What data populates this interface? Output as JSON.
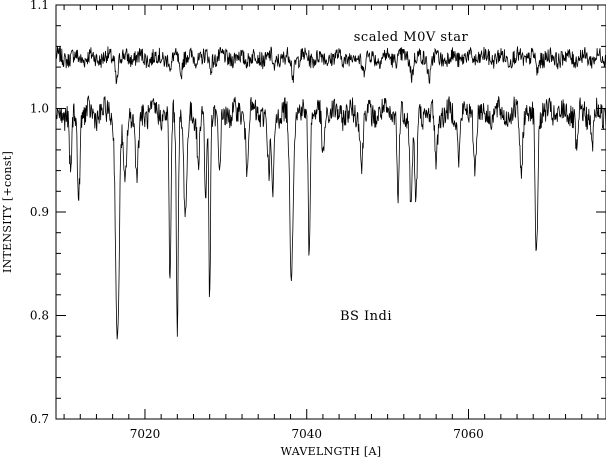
{
  "chart_data": {
    "type": "line",
    "title": "",
    "xlabel": "WAVELNGTH [A]",
    "ylabel": "INTENSITY [+const]",
    "xlim": [
      7009,
      7077
    ],
    "ylim": [
      0.7,
      1.1
    ],
    "xticks": [
      7020,
      7040,
      7060
    ],
    "yticks": [
      0.7,
      0.8,
      0.9,
      1.0,
      1.1
    ],
    "ytick_labels": [
      "0.7",
      "0.8",
      "0.9",
      "1.0",
      "1.1"
    ],
    "grid": false,
    "annotations": [
      {
        "text": "scaled M0V star",
        "x": 7059,
        "y": 1.078
      },
      {
        "text": "BS Indi",
        "x": 7054,
        "y": 0.797
      }
    ],
    "series": [
      {
        "continuum": 1.049,
        "noise_amplitude": 0.008,
        "lines": [
          {
            "center": 7016.5,
            "depth": 0.022,
            "width": 0.15
          },
          {
            "center": 7023.2,
            "depth": 0.015,
            "width": 0.12
          },
          {
            "center": 7024.4,
            "depth": 0.02,
            "width": 0.12
          },
          {
            "center": 7028.1,
            "depth": 0.012,
            "width": 0.12
          },
          {
            "center": 7036.0,
            "depth": 0.012,
            "width": 0.15
          },
          {
            "center": 7038.3,
            "depth": 0.018,
            "width": 0.15
          },
          {
            "center": 7047.0,
            "depth": 0.012,
            "width": 0.15
          },
          {
            "center": 7053.0,
            "depth": 0.015,
            "width": 0.15
          },
          {
            "center": 7055.2,
            "depth": 0.018,
            "width": 0.2
          },
          {
            "center": 7068.5,
            "depth": 0.015,
            "width": 0.15
          }
        ]
      },
      {
        "continuum": 0.995,
        "noise_amplitude": 0.012,
        "lines": [
          {
            "center": 7010.8,
            "depth": 0.06,
            "width": 0.15
          },
          {
            "center": 7011.8,
            "depth": 0.08,
            "width": 0.15
          },
          {
            "center": 7016.6,
            "depth": 0.225,
            "width": 0.22
          },
          {
            "center": 7017.5,
            "depth": 0.07,
            "width": 0.2
          },
          {
            "center": 7019.0,
            "depth": 0.06,
            "width": 0.2
          },
          {
            "center": 7023.1,
            "depth": 0.17,
            "width": 0.12
          },
          {
            "center": 7024.0,
            "depth": 0.2,
            "width": 0.12
          },
          {
            "center": 7025.0,
            "depth": 0.1,
            "width": 0.2
          },
          {
            "center": 7026.6,
            "depth": 0.05,
            "width": 0.15
          },
          {
            "center": 7027.5,
            "depth": 0.09,
            "width": 0.12
          },
          {
            "center": 7028.0,
            "depth": 0.18,
            "width": 0.1
          },
          {
            "center": 7029.2,
            "depth": 0.06,
            "width": 0.15
          },
          {
            "center": 7032.6,
            "depth": 0.05,
            "width": 0.15
          },
          {
            "center": 7035.3,
            "depth": 0.06,
            "width": 0.15
          },
          {
            "center": 7035.8,
            "depth": 0.08,
            "width": 0.15
          },
          {
            "center": 7038.1,
            "depth": 0.15,
            "width": 0.2
          },
          {
            "center": 7040.3,
            "depth": 0.13,
            "width": 0.12
          },
          {
            "center": 7042.0,
            "depth": 0.04,
            "width": 0.15
          },
          {
            "center": 7046.8,
            "depth": 0.05,
            "width": 0.15
          },
          {
            "center": 7051.3,
            "depth": 0.09,
            "width": 0.12
          },
          {
            "center": 7052.9,
            "depth": 0.09,
            "width": 0.15
          },
          {
            "center": 7053.5,
            "depth": 0.09,
            "width": 0.15
          },
          {
            "center": 7056.0,
            "depth": 0.05,
            "width": 0.15
          },
          {
            "center": 7058.8,
            "depth": 0.04,
            "width": 0.15
          },
          {
            "center": 7060.8,
            "depth": 0.05,
            "width": 0.15
          },
          {
            "center": 7066.5,
            "depth": 0.06,
            "width": 0.15
          },
          {
            "center": 7068.4,
            "depth": 0.14,
            "width": 0.15
          },
          {
            "center": 7073.4,
            "depth": 0.04,
            "width": 0.15
          },
          {
            "center": 7075.3,
            "depth": 0.03,
            "width": 0.15
          }
        ]
      }
    ]
  }
}
